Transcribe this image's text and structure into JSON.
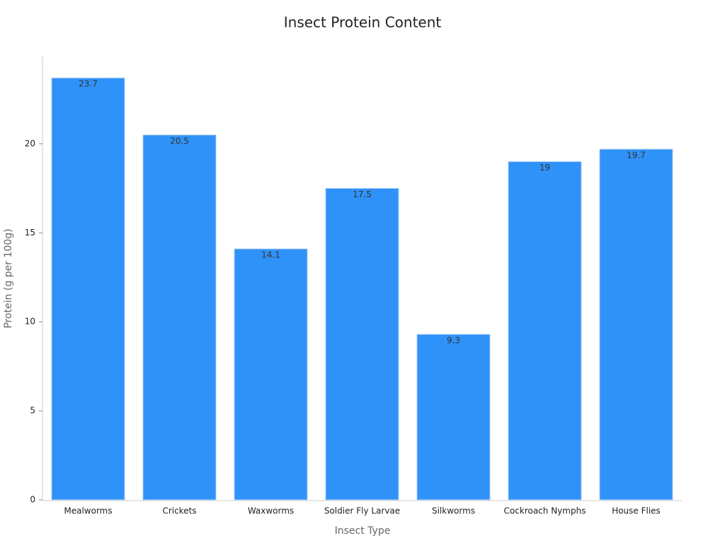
{
  "chart_data": {
    "type": "bar",
    "title": "Insect Protein Content",
    "x_label": "Insect Type",
    "y_label": "Protein (g per 100g)",
    "categories": [
      "Mealworms",
      "Crickets",
      "Waxworms",
      "Soldier Fly Larvae",
      "Silkworms",
      "Cockroach Nymphs",
      "House Flies"
    ],
    "values": [
      23.7,
      20.5,
      14.1,
      17.5,
      9.3,
      19,
      19.7
    ],
    "color": "#2f92f8",
    "ylim": [
      0,
      24.9
    ],
    "yticks": [
      0,
      5,
      10,
      15,
      20
    ],
    "grid": false
  }
}
